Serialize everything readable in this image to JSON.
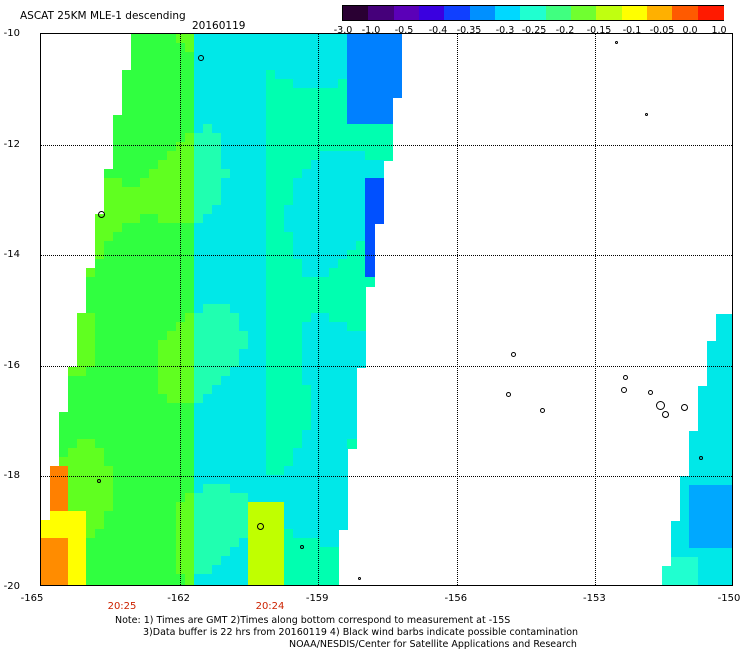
{
  "header": {
    "title": "ASCAT 25KM MLE-1 descending",
    "date": "20160119"
  },
  "colorbar": {
    "labels": [
      "-3.0",
      "-1.0",
      "-0.5",
      "-0.4",
      "-0.35",
      "-0.3",
      "-0.25",
      "-0.2",
      "-0.15",
      "-0.1",
      "-0.05",
      "0.0",
      "1.0"
    ],
    "colors": [
      "#2a0033",
      "#45007a",
      "#5b00b8",
      "#3a00e0",
      "#1040ff",
      "#0090ff",
      "#00d8ff",
      "#20ffd0",
      "#40ff80",
      "#70ff30",
      "#c0ff10",
      "#ffff00",
      "#ffb000",
      "#ff5a00",
      "#ff1a00"
    ]
  },
  "axes": {
    "lat_labels": [
      "-10",
      "-12",
      "-14",
      "-16",
      "-18",
      "-20"
    ],
    "lon_labels": [
      "-165",
      "-162",
      "-159",
      "-156",
      "-153",
      "-150"
    ],
    "lat_range": [
      -20,
      -10
    ],
    "lon_range": [
      -165,
      -150
    ]
  },
  "times": [
    "20:25",
    "20:24"
  ],
  "notes": {
    "line1": "Note: 1) Times are GMT 2)Times along bottom correspond to measurement at -15S",
    "line2": "3)Data buffer is 22 hrs from 20160119 4) Black wind barbs indicate possible contamination",
    "line3": "NOAA/NESDIS/Center for Satellite Applications and Research"
  },
  "legend_colors": {
    "swath_low": "#00e8e8",
    "swath_mid": "#30ff40",
    "swath_high": "#ffff00",
    "swath_max": "#ff8c00",
    "time_label": "#cc2200"
  }
}
